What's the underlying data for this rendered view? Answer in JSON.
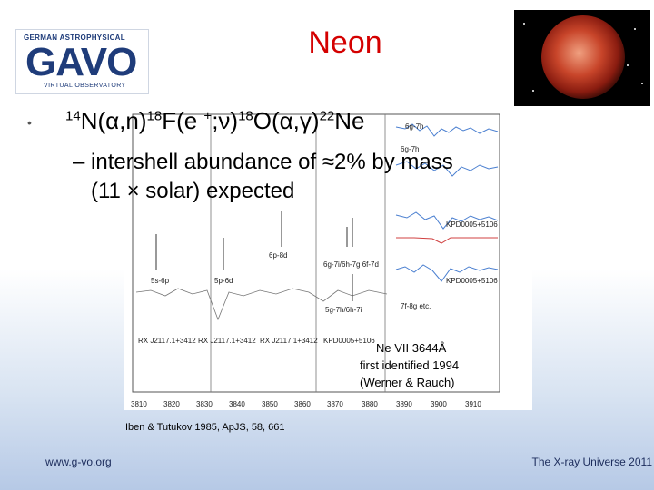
{
  "logo": {
    "top_text": "GERMAN ASTROPHYSICAL",
    "main_text": "GAVO",
    "bottom_text": "VIRTUAL OBSERVATORY"
  },
  "title": "Neon",
  "bullet": {
    "m1": "14",
    "t1": "N(α,n)",
    "m2": "18",
    "t2": "F(e ",
    "m3": "+",
    "t3": ";ν)",
    "m4": "18",
    "t4": "O(α,γ)",
    "m5": "22",
    "t5": "Ne"
  },
  "sub": {
    "line1": "– intershell abundance of ≈2% by mass",
    "line2": "(11 × solar) expected"
  },
  "spectrum": {
    "labels": [
      "6g-7h",
      "5s-6p",
      "5p-6d",
      "6p-8d",
      "6g-7i/6h-7g 6f-7d",
      "6g-7h",
      "KPD0005+5106",
      "KPD0005+5106",
      "7f-8g etc.",
      "5g-7h/6h-7i",
      "RX J2117.1+3412",
      "RX J2117.1+3412",
      "RX J2117.1+3412",
      "KPD0005+5106"
    ],
    "x_ticks": [
      "3810",
      "3820",
      "3830",
      "3840",
      "3850",
      "3860",
      "3870",
      "3880",
      "3890",
      "3900",
      "3910"
    ]
  },
  "note": {
    "line1": "Ne VII 3644Å",
    "line2": "first identified 1994",
    "line3": "(Werner & Rauch)"
  },
  "citation": "Iben & Tutukov 1985, ApJS, 58, 661",
  "footer": {
    "left": "www.g-vo.org",
    "right": "The X-ray Universe 2011"
  }
}
